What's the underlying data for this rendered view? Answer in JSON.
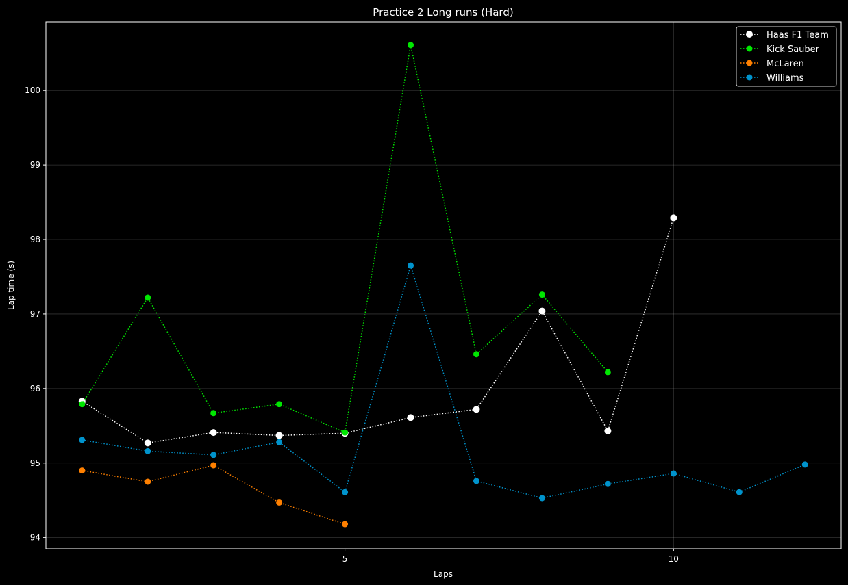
{
  "chart_data": {
    "type": "line",
    "title": "Practice 2 Long runs (Hard)",
    "xlabel": "Laps",
    "ylabel": "Lap time (s)",
    "xlim": [
      0.45,
      12.55
    ],
    "ylim": [
      93.85,
      100.92
    ],
    "x_ticks": [
      5,
      10
    ],
    "y_ticks": [
      94,
      95,
      96,
      97,
      98,
      99,
      100
    ],
    "grid": true,
    "legend_position": "top-right",
    "background": "#000000",
    "series": [
      {
        "name": "Haas F1 Team",
        "color": "#ffffff",
        "marker_size": 5,
        "x": [
          1,
          2,
          3,
          4,
          5,
          6,
          7,
          8,
          9,
          10
        ],
        "values": [
          95.83,
          95.27,
          95.41,
          95.37,
          95.4,
          95.61,
          95.72,
          97.04,
          95.43,
          98.29
        ]
      },
      {
        "name": "Kick Sauber",
        "color": "#00e701",
        "marker_size": 4.5,
        "x": [
          1,
          2,
          3,
          4,
          5,
          6,
          7,
          8,
          9
        ],
        "values": [
          95.79,
          97.22,
          95.67,
          95.79,
          95.41,
          100.61,
          96.46,
          97.26,
          96.22
        ]
      },
      {
        "name": "McLaren",
        "color": "#ff8000",
        "marker_size": 4.5,
        "x": [
          1,
          2,
          3,
          4,
          5
        ],
        "values": [
          94.9,
          94.75,
          94.97,
          94.47,
          94.18
        ]
      },
      {
        "name": "Williams",
        "color": "#0093cc",
        "marker_size": 4.5,
        "x": [
          1,
          2,
          3,
          4,
          5,
          6,
          7,
          8,
          9,
          10,
          11,
          12
        ],
        "values": [
          95.31,
          95.16,
          95.11,
          95.28,
          94.61,
          97.65,
          94.76,
          94.53,
          94.72,
          94.86,
          94.61,
          94.98
        ]
      }
    ]
  }
}
